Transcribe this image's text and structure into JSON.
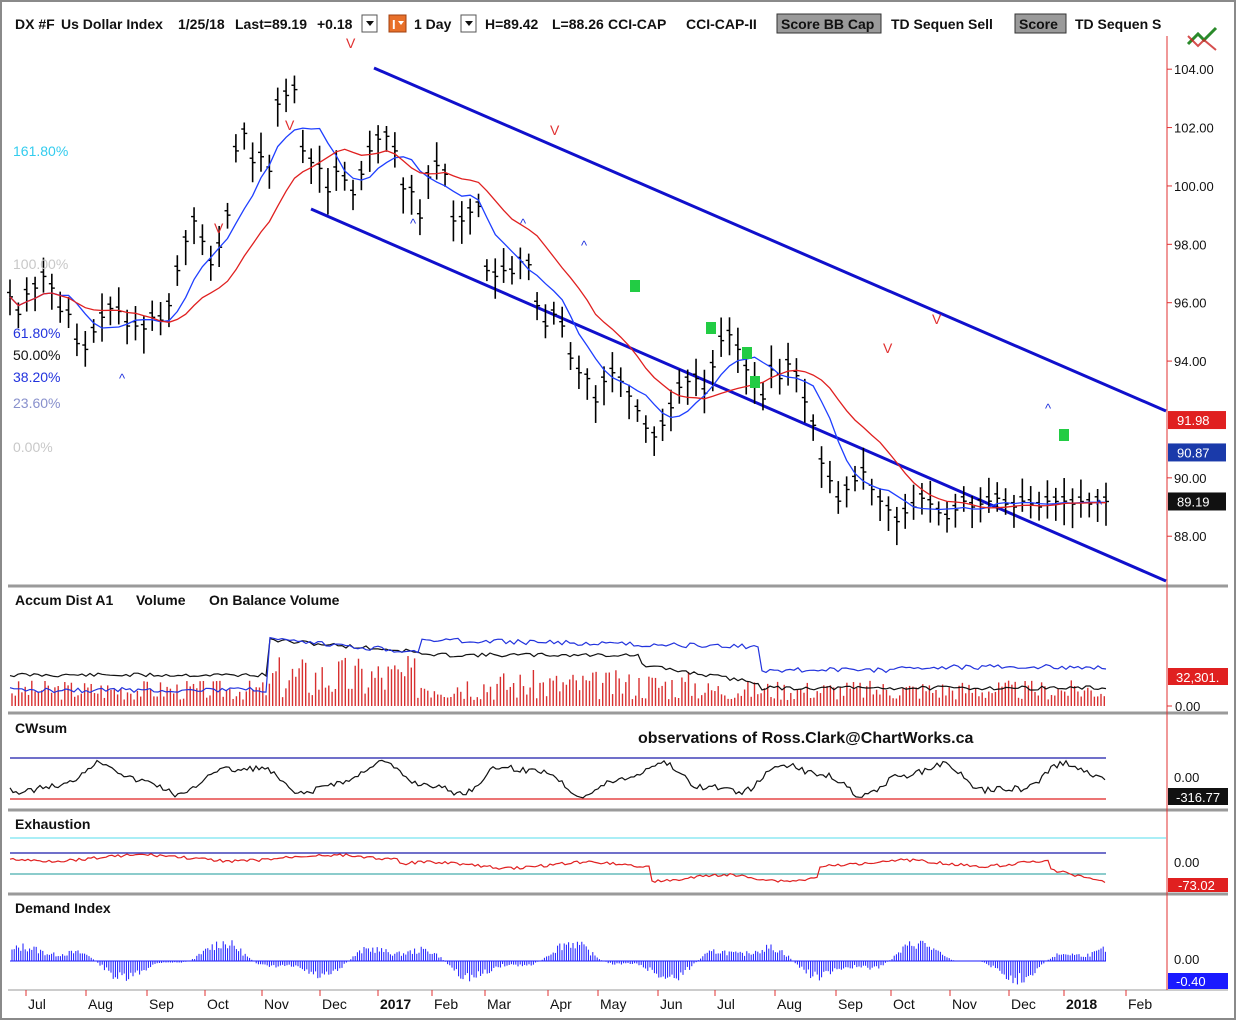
{
  "header": {
    "symbol": "DX #F",
    "name": "Us Dollar Index",
    "date": "1/25/18",
    "last": "Last=89.19",
    "change": "+0.18",
    "interval": "1 Day",
    "high": "H=89.42",
    "low": "L=88.26",
    "study1": "CCI-CAP",
    "study2": "CCI-CAP-II",
    "score_bb": "Score BB Cap",
    "td1": "TD Sequen Sell",
    "score": "Score",
    "td2": "TD Sequen S"
  },
  "colors": {
    "price_bar": "#000000",
    "ma_short": "#1f3fff",
    "ma_long": "#e02020",
    "channel": "#1010cc",
    "axis_red": "#e03030",
    "volume": "#d83030",
    "demand": "#1a1aff",
    "fib_cyan": "#33ccee"
  },
  "chart_data": [
    {
      "type": "line",
      "title": "DX #F Us Dollar Index",
      "x_axis_labels": [
        "Jul",
        "Aug",
        "Sep",
        "Oct",
        "Nov",
        "Dec",
        "2017",
        "Feb",
        "Mar",
        "Apr",
        "May",
        "Jun",
        "Jul",
        "Aug",
        "Sep",
        "Oct",
        "Nov",
        "Dec",
        "2018",
        "Feb"
      ],
      "ylim": [
        86.5,
        105.0
      ],
      "y_ticks": [
        "104.00",
        "102.00",
        "100.00",
        "98.00",
        "96.00",
        "94.00",
        "90.00",
        "88.00"
      ],
      "price_labels": [
        "91.98",
        "90.87",
        "89.19"
      ],
      "fib_labels": [
        "161.80%",
        "100.00%",
        "61.80%",
        "61.80%",
        "50.00%",
        "38.20%",
        "23.60%",
        "0.00%"
      ],
      "series": [
        {
          "x": [
            0,
            3,
            6,
            9,
            12,
            15,
            18,
            21,
            24,
            27,
            30,
            33,
            36,
            39,
            42,
            45,
            48,
            51,
            54,
            57,
            60,
            63,
            66,
            69,
            72,
            75,
            78,
            81,
            84,
            87,
            90,
            93,
            96,
            99,
            102,
            105,
            108,
            111,
            114,
            117,
            120,
            123,
            126,
            129,
            132,
            135,
            138,
            141,
            144,
            147,
            150,
            153,
            156,
            159,
            162,
            165,
            168,
            171,
            174,
            177,
            180,
            183,
            186,
            189,
            192,
            195,
            198,
            201,
            204,
            207,
            210,
            213,
            216,
            219,
            222,
            225,
            228,
            231,
            234,
            237,
            240,
            243,
            246,
            249,
            252,
            255,
            258,
            261,
            264,
            267,
            270,
            273,
            276,
            279,
            282,
            285,
            288,
            291,
            294,
            297,
            300,
            303,
            306,
            309,
            312,
            315,
            318,
            321,
            324,
            327,
            330,
            333,
            336,
            339,
            342,
            345,
            348,
            351,
            354,
            357,
            360,
            363,
            366,
            369,
            372,
            375,
            378,
            381,
            384,
            387,
            390,
            393
          ],
          "values": [
            96.2,
            95.6,
            96.3,
            96.5,
            96.9,
            96.5,
            95.7,
            95.6,
            94.6,
            94.4,
            95.0,
            95.5,
            95.8,
            95.7,
            95.2,
            95.2,
            95.1,
            95.5,
            95.4,
            95.9,
            97.1,
            98.1,
            98.8,
            98.1,
            97.3,
            97.9,
            99.0,
            101.2,
            101.8,
            100.8,
            101.0,
            100.5,
            102.8,
            103.1,
            103.3,
            101.2,
            100.8,
            100.6,
            99.8,
            100.5,
            100.2,
            99.7,
            100.4,
            101.2,
            101.6,
            101.7,
            101.2,
            99.9,
            99.8,
            98.9,
            100.3,
            100.7,
            100.4,
            98.8,
            98.8,
            99.1,
            99.3,
            97.1,
            96.9,
            97.1,
            97.0,
            97.4,
            97.3,
            95.9,
            95.2,
            95.6,
            95.2,
            94.1,
            93.6,
            93.4,
            92.6,
            93.3,
            93.6,
            93.3,
            92.8,
            92.3,
            91.7,
            91.4,
            91.8,
            92.4,
            93.1,
            93.3,
            93.4,
            92.9,
            93.8,
            94.7,
            94.9,
            94.4,
            93.7,
            93.3,
            92.7,
            93.7,
            93.4,
            93.9,
            93.5,
            92.6,
            91.8,
            90.5,
            89.9,
            89.2,
            89.6,
            89.9,
            90.2,
            89.6,
            89.2,
            88.9,
            88.5,
            88.8,
            89.0,
            89.3,
            89.1,
            88.8,
            88.6,
            88.9,
            89.2,
            89.0,
            89.1,
            89.2,
            89.3,
            89.1,
            89.0,
            89.2,
            89.1,
            89.0,
            89.2,
            89.19,
            89.2,
            89.1,
            89.19,
            89.1,
            89.2,
            89.19
          ]
        }
      ]
    }
  ],
  "panes": {
    "accum": {
      "title": "Accum Dist A1",
      "vol": "Volume",
      "obv": "On Balance Volume",
      "value_label": "32,301.",
      "zero_label": "0.00"
    },
    "cwsum": {
      "title": "CWsum",
      "zero_label": "0.00",
      "value_label": "-316.77"
    },
    "exhaustion": {
      "title": "Exhaustion",
      "zero_label": "0.00",
      "value_label": "-73.02"
    },
    "demand": {
      "title": "Demand Index",
      "zero_label": "0.00",
      "value_label": "-0.40"
    }
  },
  "watermark": "observations of Ross.Clark@ChartWorks.ca"
}
